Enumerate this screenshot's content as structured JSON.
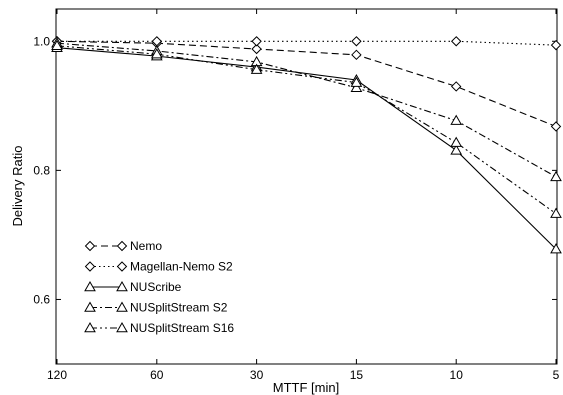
{
  "chart_data": {
    "type": "line",
    "title": "",
    "xlabel": "MTTF [min]",
    "ylabel": "Delivery Ratio",
    "x_categories": [
      "120",
      "60",
      "30",
      "15",
      "10",
      "5"
    ],
    "ylim": [
      0.5,
      1.05
    ],
    "y_ticks": [
      0.6,
      0.8,
      "1.0"
    ],
    "legend_position": "lower-left",
    "grid": false,
    "series": [
      {
        "name": "Nemo",
        "marker": "diamond",
        "dash": "dashed",
        "values": [
          1.0,
          0.997,
          0.988,
          0.979,
          0.93,
          0.868
        ]
      },
      {
        "name": "Magellan-Nemo S2",
        "marker": "diamond",
        "dash": "dotted",
        "values": [
          1.0,
          1.0,
          1.0,
          1.0,
          1.0,
          0.994
        ]
      },
      {
        "name": "NUScribe",
        "marker": "triangle",
        "dash": "solid",
        "values": [
          0.99,
          0.977,
          0.96,
          0.94,
          0.831,
          0.678
        ]
      },
      {
        "name": "NUSplitStream S2",
        "marker": "triangle",
        "dash": "dashdot",
        "values": [
          0.997,
          0.985,
          0.968,
          0.928,
          0.877,
          0.79
        ]
      },
      {
        "name": "NUSplitStream S16",
        "marker": "triangle",
        "dash": "dashdotdot",
        "values": [
          0.993,
          0.98,
          0.956,
          0.936,
          0.843,
          0.733
        ]
      }
    ]
  }
}
